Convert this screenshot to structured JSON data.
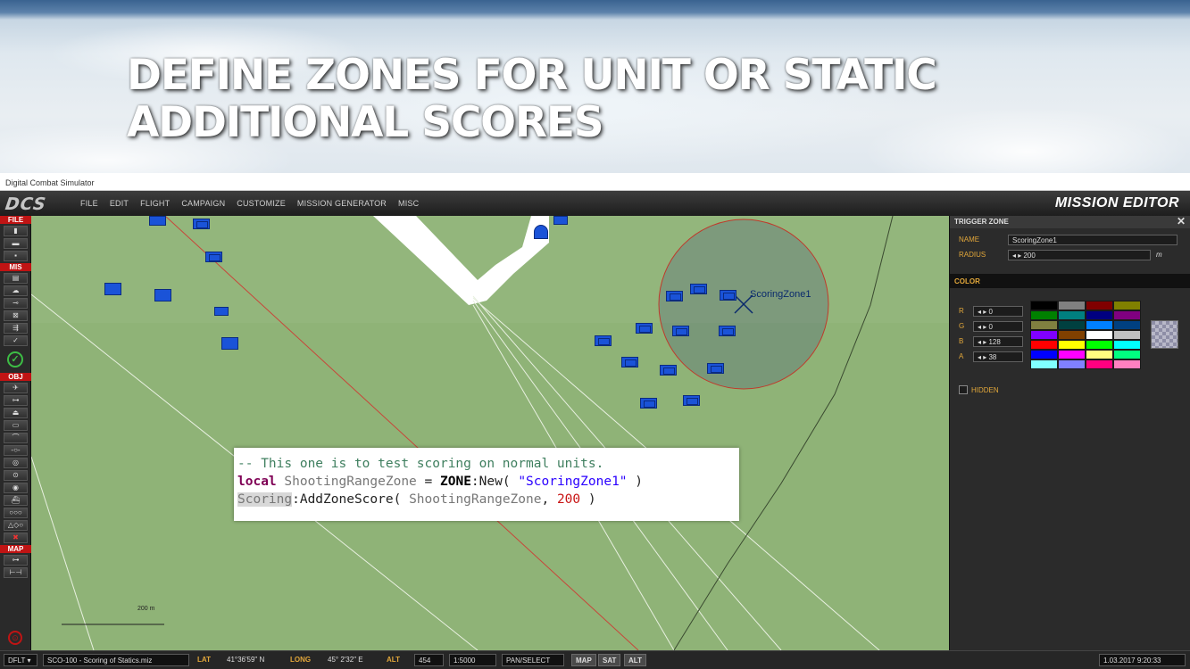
{
  "slide": {
    "title_line1": "DEFINE ZONES FOR UNIT OR STATIC",
    "title_line2": "ADDITIONAL SCORES"
  },
  "window": {
    "title": "Digital Combat Simulator"
  },
  "app": {
    "logo": "DCS",
    "menu": [
      "FILE",
      "EDIT",
      "FLIGHT",
      "CAMPAIGN",
      "CUSTOMIZE",
      "MISSION GENERATOR",
      "MISC"
    ],
    "mode_title": "MISSION EDITOR"
  },
  "toolbar": {
    "sections": {
      "file": "FILE",
      "mis": "MIS",
      "obj": "OBJ",
      "map": "MAP"
    }
  },
  "map": {
    "zone_name": "ScoringZone1",
    "scale_label": "200 m",
    "accent_colors": {
      "grass": "#8fb377",
      "unit_blue": "#1a53d8",
      "zone_red": "#c0392b"
    }
  },
  "code": {
    "line1_comment": "-- This one is to test scoring on normal units.",
    "line2_kw": "local",
    "line2_var": " ShootingRangeZone",
    "line2_eq": " = ",
    "line2_cls": "ZONE",
    "line2_call": ":New( ",
    "line2_str": "\"ScoringZone1\"",
    "line2_end": " )",
    "line3_obj": "Scoring",
    "line3_call": ":AddZoneScore( ",
    "line3_var": "ShootingRangeZone",
    "line3_sep": ", ",
    "line3_num": "200",
    "line3_end": " )"
  },
  "trigger_zone": {
    "header": "TRIGGER ZONE",
    "name_label": "NAME",
    "name_value": "ScoringZone1",
    "radius_label": "RADIUS",
    "radius_value": "200",
    "radius_unit": "m",
    "color_header": "COLOR",
    "r_label": "R",
    "r_value": "0",
    "g_label": "G",
    "g_value": "0",
    "b_label": "B",
    "b_value": "128",
    "a_label": "A",
    "a_value": "38",
    "hidden_label": "HIDDEN",
    "palette": [
      "#000000",
      "#808080",
      "#800000",
      "#808000",
      "#008000",
      "#008080",
      "#000080",
      "#800080",
      "#808040",
      "#004040",
      "#0080ff",
      "#004080",
      "#8000ff",
      "#804000",
      "#ffffff",
      "#c0c0c0",
      "#ff0000",
      "#ffff00",
      "#00ff00",
      "#00ffff",
      "#0000ff",
      "#ff00ff",
      "#ffff80",
      "#00ff80",
      "#80ffff",
      "#8080ff",
      "#ff0080",
      "#ff80c0"
    ]
  },
  "status": {
    "coalition": "DFLT",
    "mission_file": "SCO-100 - Scoring of Statics.miz",
    "lat_label": "LAT",
    "lat_value": "41°36'59\" N",
    "long_label": "LONG",
    "long_value": "45° 2'32\" E",
    "alt_label": "ALT",
    "alt_value": "454",
    "map_scale": "1:5000",
    "tool_mode": "PAN/SELECT",
    "btn_map": "MAP",
    "btn_sat": "SAT",
    "btn_alt": "ALT",
    "datetime": "1.03.2017 9:20:33"
  }
}
